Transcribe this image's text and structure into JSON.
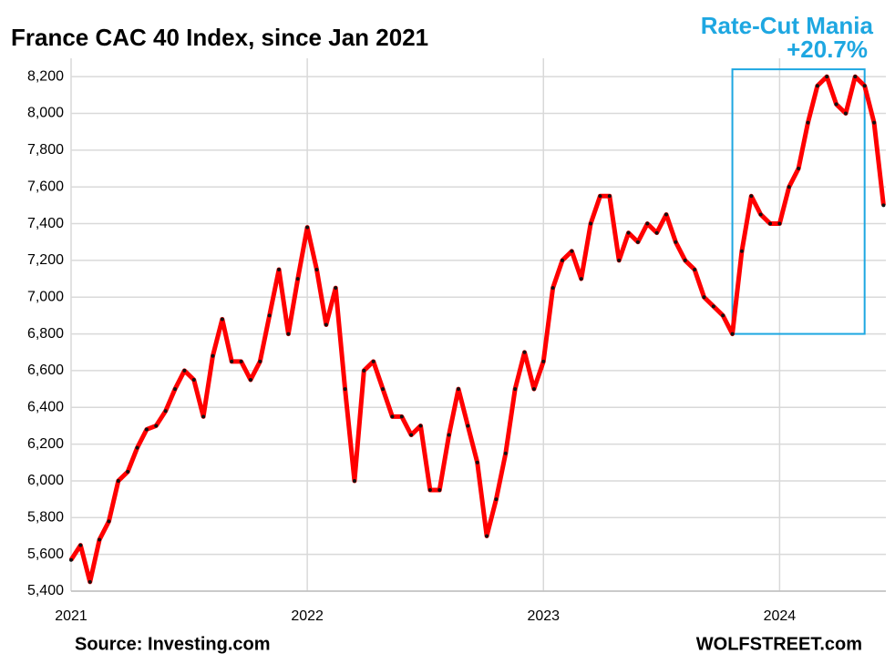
{
  "chart_data": {
    "type": "line",
    "title": "France CAC 40 Index, since Jan 2021",
    "annotation": "Rate-Cut Mania",
    "annotation_change": "+20.7%",
    "source": "Source:  Investing.com",
    "credit": "WOLFSTREET.com",
    "color": "#ff0000",
    "marker_color": "#111111",
    "grid": true,
    "x": [
      2021,
      2021.04,
      2021.08,
      2021.12,
      2021.16,
      2021.2,
      2021.24,
      2021.28,
      2021.32,
      2021.36,
      2021.4,
      2021.44,
      2021.48,
      2021.52,
      2021.56,
      2021.6,
      2021.64,
      2021.68,
      2021.72,
      2021.76,
      2021.8,
      2021.84,
      2021.88,
      2021.92,
      2021.96,
      2022,
      2022.04,
      2022.08,
      2022.12,
      2022.16,
      2022.2,
      2022.24,
      2022.28,
      2022.32,
      2022.36,
      2022.4,
      2022.44,
      2022.48,
      2022.52,
      2022.56,
      2022.6,
      2022.64,
      2022.68,
      2022.72,
      2022.76,
      2022.8,
      2022.84,
      2022.88,
      2022.92,
      2022.96,
      2023,
      2023.04,
      2023.08,
      2023.12,
      2023.16,
      2023.2,
      2023.24,
      2023.28,
      2023.32,
      2023.36,
      2023.4,
      2023.44,
      2023.48,
      2023.52,
      2023.56,
      2023.6,
      2023.64,
      2023.68,
      2023.72,
      2023.76,
      2023.8,
      2023.84,
      2023.88,
      2023.92,
      2023.96,
      2024,
      2024.04,
      2024.08,
      2024.12,
      2024.16,
      2024.2,
      2024.24,
      2024.28,
      2024.32,
      2024.36,
      2024.4,
      2024.44
    ],
    "values": [
      5570,
      5650,
      5450,
      5680,
      5780,
      6000,
      6050,
      6180,
      6280,
      6300,
      6380,
      6500,
      6600,
      6550,
      6350,
      6680,
      6880,
      6650,
      6650,
      6550,
      6650,
      6900,
      7150,
      6800,
      7100,
      7380,
      7150,
      6850,
      7050,
      6500,
      6000,
      6600,
      6650,
      6500,
      6350,
      6350,
      6250,
      6300,
      5950,
      5950,
      6250,
      6500,
      6300,
      6100,
      5700,
      5900,
      6150,
      6500,
      6700,
      6500,
      6650,
      7050,
      7200,
      7250,
      7100,
      7400,
      7550,
      7550,
      7200,
      7350,
      7300,
      7400,
      7350,
      7450,
      7300,
      7200,
      7150,
      7000,
      6950,
      6900,
      6800,
      7250,
      7550,
      7450,
      7400,
      7400,
      7600,
      7700,
      7950,
      8150,
      8200,
      8050,
      8000,
      8200,
      8150,
      7950,
      7500
    ],
    "xlim": [
      2021,
      2024.45
    ],
    "xticks": [
      2021,
      2022,
      2023,
      2024
    ],
    "ylim": [
      5400,
      8300
    ],
    "yticks": [
      {
        "value": 5400,
        "label": "5,400"
      },
      {
        "value": 5600,
        "label": "5,600"
      },
      {
        "value": 5800,
        "label": "5,800"
      },
      {
        "value": 6000,
        "label": "6,000"
      },
      {
        "value": 6200,
        "label": "6,200"
      },
      {
        "value": 6400,
        "label": "6,400"
      },
      {
        "value": 6600,
        "label": "6,600"
      },
      {
        "value": 6800,
        "label": "6,800"
      },
      {
        "value": 7000,
        "label": "7,000"
      },
      {
        "value": 7200,
        "label": "7,200"
      },
      {
        "value": 7400,
        "label": "7,400"
      },
      {
        "value": 7600,
        "label": "7,600"
      },
      {
        "value": 7800,
        "label": "7,800"
      },
      {
        "value": 8000,
        "label": "8,000"
      },
      {
        "value": 8200,
        "label": "8,200"
      }
    ],
    "highlight": {
      "x": [
        2023.8,
        2024.36
      ],
      "y": [
        6800,
        8240
      ],
      "color": "#1ea7e1"
    }
  }
}
